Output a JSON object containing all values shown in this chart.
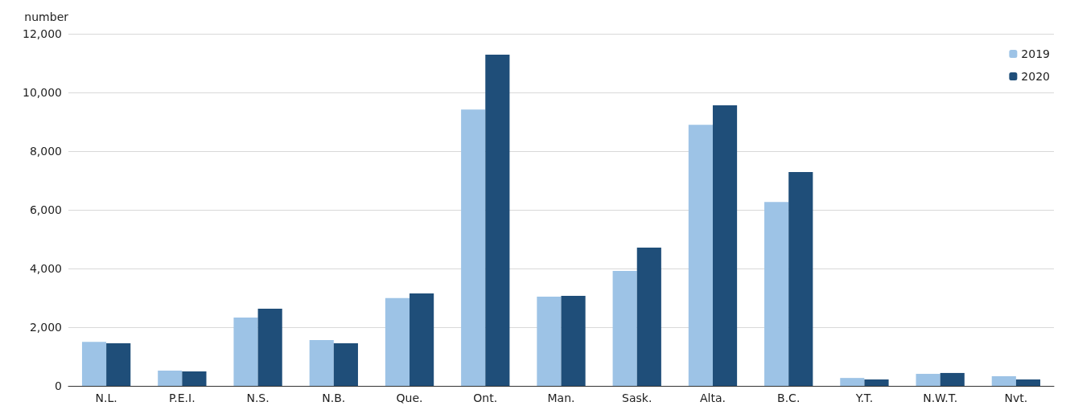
{
  "chart_data": {
    "type": "bar",
    "ylabel": "number",
    "categories": [
      "N.L.",
      "P.E.I.",
      "N.S.",
      "N.B.",
      "Que.",
      "Ont.",
      "Man.",
      "Sask.",
      "Alta.",
      "B.C.",
      "Y.T.",
      "N.W.T.",
      "Nvt."
    ],
    "series": [
      {
        "name": "2019",
        "color": "#9dc3e6",
        "values": [
          1500,
          520,
          2330,
          1560,
          2990,
          9420,
          3040,
          3920,
          8900,
          6270,
          270,
          410,
          330
        ]
      },
      {
        "name": "2020",
        "color": "#1f4e79",
        "values": [
          1450,
          490,
          2630,
          1450,
          3150,
          11290,
          3070,
          4710,
          9560,
          7290,
          220,
          440,
          220
        ]
      }
    ],
    "ylim": [
      0,
      12000
    ],
    "yticks": [
      0,
      {
        "value": 2000,
        "label": "2,000"
      },
      {
        "value": 4000,
        "label": "4,000"
      },
      {
        "value": 6000,
        "label": "6,000"
      },
      {
        "value": 8000,
        "label": "8,000"
      },
      {
        "value": 10000,
        "label": "10,000"
      },
      {
        "value": 12000,
        "label": "12,000"
      }
    ],
    "grid": "y",
    "legend": "top right"
  }
}
